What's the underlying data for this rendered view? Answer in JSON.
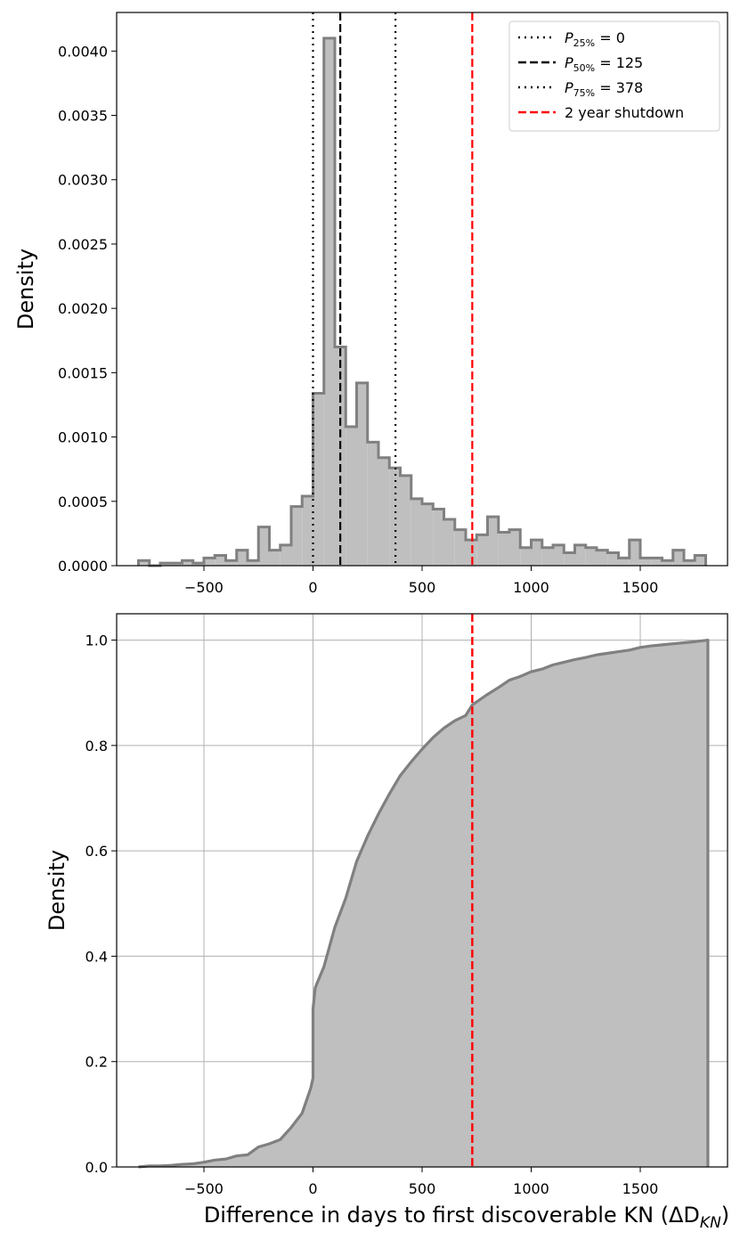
{
  "chart_data": [
    {
      "type": "histogram",
      "ylabel": "Density",
      "xlim": [
        -900,
        1900
      ],
      "ylim": [
        0,
        0.0043
      ],
      "x_ticks": [
        -500,
        0,
        500,
        1000,
        1500
      ],
      "x_tick_labels": [
        "−500",
        "0",
        "500",
        "1000",
        "1500"
      ],
      "y_ticks": [
        0,
        0.0005,
        0.001,
        0.0015,
        0.002,
        0.0025,
        0.003,
        0.0035,
        0.004
      ],
      "y_tick_labels": [
        "0.0000",
        "0.0005",
        "0.0010",
        "0.0015",
        "0.0020",
        "0.0025",
        "0.0030",
        "0.0035",
        "0.0040"
      ],
      "grid": false,
      "bin_edges": [
        -800,
        -750,
        -700,
        -650,
        -600,
        -550,
        -500,
        -450,
        -400,
        -350,
        -300,
        -250,
        -200,
        -150,
        -100,
        -50,
        0,
        50,
        100,
        150,
        200,
        250,
        300,
        350,
        400,
        450,
        500,
        550,
        600,
        650,
        700,
        750,
        800,
        850,
        900,
        950,
        1000,
        1050,
        1100,
        1150,
        1200,
        1250,
        1300,
        1350,
        1400,
        1450,
        1500,
        1550,
        1600,
        1650,
        1700,
        1750,
        1800
      ],
      "densities": [
        4e-05,
        0.0,
        2e-05,
        2e-05,
        4e-05,
        2e-05,
        6e-05,
        8e-05,
        4e-05,
        0.00012,
        4e-05,
        0.0003,
        0.00012,
        0.00016,
        0.00046,
        0.00054,
        0.00134,
        0.0041,
        0.0017,
        0.00108,
        0.00142,
        0.00096,
        0.00084,
        0.00076,
        0.0007,
        0.00052,
        0.00048,
        0.00044,
        0.00036,
        0.00028,
        0.0002,
        0.00024,
        0.00038,
        0.00026,
        0.00028,
        0.00014,
        0.0002,
        0.00014,
        0.00016,
        0.0001,
        0.00016,
        0.00014,
        0.00012,
        0.0001,
        6e-05,
        0.0002,
        6e-05,
        6e-05,
        4e-05,
        0.00012,
        4e-05,
        8e-05
      ],
      "style": {
        "fill": "#bfbfbf",
        "edge": "#808080"
      },
      "vlines": [
        {
          "x": 0,
          "style": "dotted",
          "color": "#000000"
        },
        {
          "x": 125,
          "style": "dashed",
          "color": "#000000"
        },
        {
          "x": 378,
          "style": "dotted",
          "color": "#000000"
        },
        {
          "x": 730,
          "style": "dashed",
          "color": "#ff0000"
        }
      ],
      "legend": {
        "placement": "top-right",
        "entries": [
          {
            "label_main": "P",
            "label_sub": "25%",
            "label_rest": " = 0",
            "style": "dotted",
            "color": "#000000"
          },
          {
            "label_main": "P",
            "label_sub": "50%",
            "label_rest": " = 125",
            "style": "dashed",
            "color": "#000000"
          },
          {
            "label_main": "P",
            "label_sub": "75%",
            "label_rest": " = 378",
            "style": "dotted",
            "color": "#000000"
          },
          {
            "label": "2 year shutdown",
            "style": "dashed",
            "color": "#ff0000"
          }
        ]
      }
    },
    {
      "type": "area",
      "subtype": "cumulative step",
      "ylabel": "Density",
      "xlabel_main": "Difference in days to first discoverable KN (ΔD",
      "xlabel_sub": "KN",
      "xlabel_end": ")",
      "xlim": [
        -900,
        1900
      ],
      "ylim": [
        0,
        1.05
      ],
      "x_ticks": [
        -500,
        0,
        500,
        1000,
        1500
      ],
      "x_tick_labels": [
        "−500",
        "0",
        "500",
        "1000",
        "1500"
      ],
      "y_ticks": [
        0,
        0.2,
        0.4,
        0.6,
        0.8,
        1.0
      ],
      "y_tick_labels": [
        "0.0",
        "0.2",
        "0.4",
        "0.6",
        "0.8",
        "1.0"
      ],
      "grid": true,
      "points": [
        [
          -800,
          0.0
        ],
        [
          -750,
          0.002
        ],
        [
          -700,
          0.002
        ],
        [
          -650,
          0.003
        ],
        [
          -600,
          0.005
        ],
        [
          -550,
          0.006
        ],
        [
          -500,
          0.009
        ],
        [
          -450,
          0.013
        ],
        [
          -400,
          0.015
        ],
        [
          -350,
          0.021
        ],
        [
          -300,
          0.023
        ],
        [
          -250,
          0.038
        ],
        [
          -200,
          0.044
        ],
        [
          -150,
          0.052
        ],
        [
          -100,
          0.075
        ],
        [
          -50,
          0.102
        ],
        [
          -10,
          0.15
        ],
        [
          0,
          0.169
        ],
        [
          0,
          0.3
        ],
        [
          10,
          0.34
        ],
        [
          50,
          0.38
        ],
        [
          100,
          0.455
        ],
        [
          150,
          0.51
        ],
        [
          200,
          0.58
        ],
        [
          250,
          0.628
        ],
        [
          300,
          0.67
        ],
        [
          350,
          0.708
        ],
        [
          400,
          0.743
        ],
        [
          450,
          0.769
        ],
        [
          500,
          0.793
        ],
        [
          550,
          0.815
        ],
        [
          600,
          0.833
        ],
        [
          650,
          0.847
        ],
        [
          700,
          0.857
        ],
        [
          730,
          0.877
        ],
        [
          800,
          0.897
        ],
        [
          850,
          0.91
        ],
        [
          900,
          0.924
        ],
        [
          950,
          0.931
        ],
        [
          1000,
          0.94
        ],
        [
          1050,
          0.945
        ],
        [
          1100,
          0.953
        ],
        [
          1150,
          0.958
        ],
        [
          1200,
          0.963
        ],
        [
          1250,
          0.967
        ],
        [
          1300,
          0.972
        ],
        [
          1350,
          0.975
        ],
        [
          1400,
          0.978
        ],
        [
          1450,
          0.981
        ],
        [
          1500,
          0.986
        ],
        [
          1550,
          0.989
        ],
        [
          1600,
          0.991
        ],
        [
          1650,
          0.993
        ],
        [
          1700,
          0.995
        ],
        [
          1750,
          0.997
        ],
        [
          1810,
          1.0
        ]
      ],
      "style": {
        "fill": "#bfbfbf",
        "edge": "#808080"
      },
      "vlines": [
        {
          "x": 730,
          "style": "dashed",
          "color": "#ff0000"
        }
      ]
    }
  ]
}
